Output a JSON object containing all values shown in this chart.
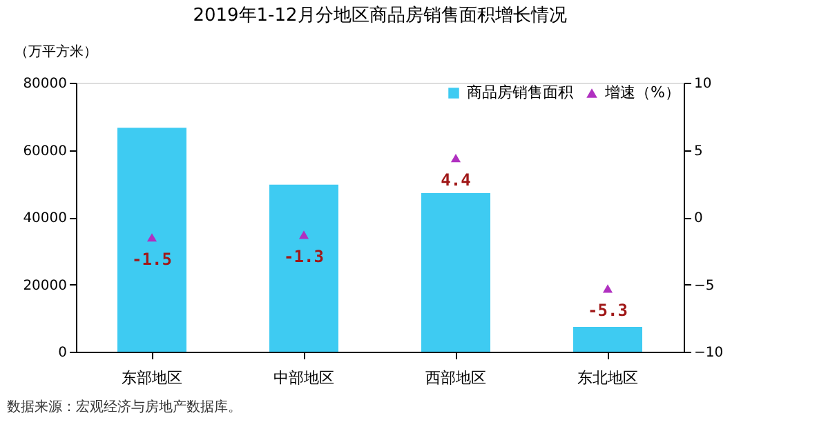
{
  "chart_data": {
    "type": "bar",
    "title": "2019年1-12月分地区商品房销售面积增长情况",
    "ylabel": "（万平方米）",
    "categories": [
      "东部地区",
      "中部地区",
      "西部地区",
      "东北地区"
    ],
    "series": [
      {
        "name": "商品房销售面积",
        "color": "#3ecbf2",
        "values": [
          66600,
          49700,
          47200,
          7400
        ]
      },
      {
        "name": "增速（%）",
        "type": "scatter",
        "color": "#b030c0",
        "axis": "y2",
        "marker": "triangle",
        "values": [
          -1.5,
          -1.3,
          4.4,
          -5.3
        ],
        "value_labels": [
          "-1.5",
          "-1.3",
          "4.4",
          "-5.3"
        ]
      }
    ],
    "ylim": [
      0,
      80000
    ],
    "yticks": [
      0,
      20000,
      40000,
      60000,
      80000
    ],
    "y2lim": [
      -10,
      10
    ],
    "y2ticks": [
      -10,
      -5,
      0,
      5,
      10
    ],
    "grid": false,
    "legend": "top right",
    "annotations": [
      "数据来源：宏观经济与房地产数据库。"
    ]
  }
}
